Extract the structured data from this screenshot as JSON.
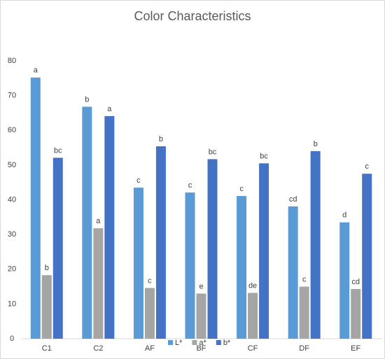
{
  "chart_data": {
    "type": "bar",
    "title": "Color Characteristics",
    "categories": [
      "C1",
      "C2",
      "AF",
      "BF",
      "CF",
      "DF",
      "EF"
    ],
    "series": [
      {
        "name": "L*",
        "color": "#5b9bd5",
        "values": [
          75.2,
          66.8,
          43.5,
          42.1,
          41.1,
          38.1,
          33.5
        ],
        "letters": [
          "a",
          "b",
          "c",
          "c",
          "c",
          "cd",
          "d"
        ]
      },
      {
        "name": "a*",
        "color": "#a5a5a5",
        "values": [
          18.3,
          31.8,
          14.6,
          13.0,
          13.2,
          15.0,
          14.3
        ],
        "letters": [
          "b",
          "a",
          "c",
          "e",
          "de",
          "c",
          "cd"
        ]
      },
      {
        "name": "b*",
        "color": "#4472c4",
        "values": [
          52.1,
          64.1,
          55.4,
          51.7,
          50.5,
          54.0,
          47.5
        ],
        "letters": [
          "bc",
          "a",
          "b",
          "bc",
          "bc",
          "b",
          "c"
        ]
      }
    ],
    "ylim": [
      0,
      80
    ],
    "yticks": [
      0,
      10,
      20,
      30,
      40,
      50,
      60,
      70,
      80
    ],
    "grid": false,
    "legend": "bottom"
  }
}
